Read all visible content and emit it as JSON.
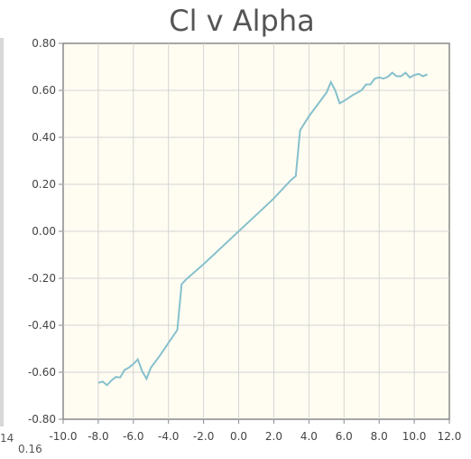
{
  "chart_data": {
    "type": "line",
    "title": "Cl v Alpha",
    "xlabel": "",
    "ylabel": "",
    "xlim": [
      -10,
      12
    ],
    "ylim": [
      -0.8,
      0.8
    ],
    "x_ticks": [
      "-10.0",
      "-8.0",
      "-6.0",
      "-4.0",
      "-2.0",
      "0.0",
      "2.0",
      "4.0",
      "6.0",
      "8.0",
      "10.0",
      "12.0"
    ],
    "y_ticks": [
      "0.80",
      "0.60",
      "0.40",
      "0.20",
      "0.00",
      "-0.20",
      "-0.40",
      "-0.60",
      "-0.80"
    ],
    "grid": true,
    "series": [
      {
        "color": "#86c0cc",
        "points": [
          [
            -8.0,
            -0.645
          ],
          [
            -7.75,
            -0.64
          ],
          [
            -7.5,
            -0.655
          ],
          [
            -7.25,
            -0.635
          ],
          [
            -7.0,
            -0.62
          ],
          [
            -6.75,
            -0.622
          ],
          [
            -6.5,
            -0.59
          ],
          [
            -6.25,
            -0.58
          ],
          [
            -6.0,
            -0.565
          ],
          [
            -5.75,
            -0.545
          ],
          [
            -5.5,
            -0.595
          ],
          [
            -5.25,
            -0.628
          ],
          [
            -5.0,
            -0.58
          ],
          [
            -4.5,
            -0.53
          ],
          [
            -4.0,
            -0.475
          ],
          [
            -3.5,
            -0.42
          ],
          [
            -3.25,
            -0.225
          ],
          [
            -3.0,
            -0.205
          ],
          [
            -2.0,
            -0.14
          ],
          [
            -1.0,
            -0.07
          ],
          [
            0.0,
            0.0
          ],
          [
            1.0,
            0.07
          ],
          [
            2.0,
            0.14
          ],
          [
            3.0,
            0.22
          ],
          [
            3.25,
            0.235
          ],
          [
            3.5,
            0.43
          ],
          [
            4.0,
            0.49
          ],
          [
            4.5,
            0.54
          ],
          [
            5.0,
            0.59
          ],
          [
            5.25,
            0.635
          ],
          [
            5.5,
            0.6
          ],
          [
            5.75,
            0.545
          ],
          [
            6.0,
            0.555
          ],
          [
            6.5,
            0.58
          ],
          [
            7.0,
            0.6
          ],
          [
            7.25,
            0.625
          ],
          [
            7.5,
            0.625
          ],
          [
            7.75,
            0.65
          ],
          [
            8.0,
            0.655
          ],
          [
            8.25,
            0.65
          ],
          [
            8.5,
            0.658
          ],
          [
            8.75,
            0.675
          ],
          [
            9.0,
            0.66
          ],
          [
            9.25,
            0.66
          ],
          [
            9.5,
            0.675
          ],
          [
            9.75,
            0.655
          ],
          [
            10.0,
            0.665
          ],
          [
            10.25,
            0.67
          ],
          [
            10.5,
            0.66
          ],
          [
            10.75,
            0.668
          ]
        ]
      }
    ]
  },
  "stray_labels": {
    "left": "14",
    "under": "0.16"
  }
}
